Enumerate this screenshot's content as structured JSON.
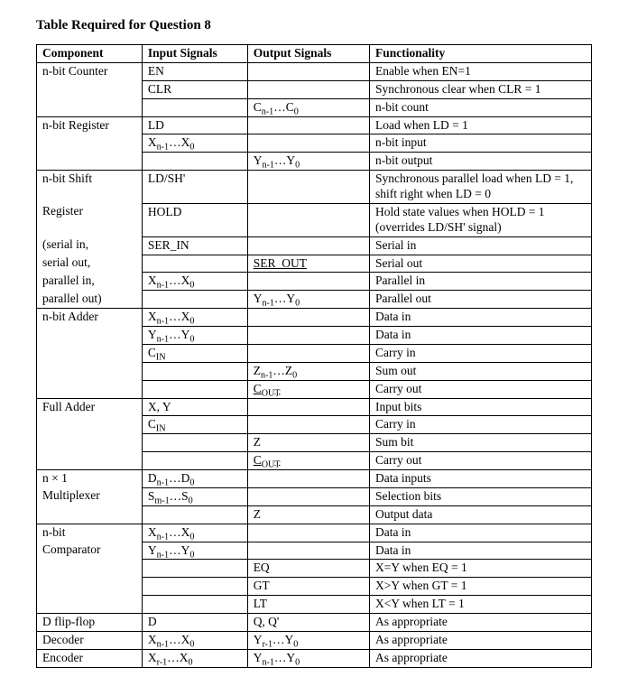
{
  "title": "Table Required for Question 8",
  "headers": [
    "Component",
    "Input Signals",
    "Output Signals",
    "Functionality"
  ],
  "colors": {
    "text": "#000000",
    "border": "#000000",
    "background": "#ffffff"
  },
  "counter": {
    "name": [
      "n-bit Counter"
    ],
    "rows": [
      {
        "in": "EN",
        "out": "",
        "fn": "Enable when EN=1"
      },
      {
        "in": "CLR",
        "out": "",
        "fn": "Synchronous clear when CLR = 1"
      },
      {
        "in": "",
        "out": "Cn-1...C0",
        "fn": "n-bit count"
      }
    ]
  },
  "register": {
    "name": [
      "n-bit Register"
    ],
    "rows": [
      {
        "in": "LD",
        "out": "",
        "fn": "Load when LD = 1"
      },
      {
        "in": "Xn-1...X0",
        "out": "",
        "fn": "n-bit input"
      },
      {
        "in": "",
        "out": "Yn-1...Y0",
        "fn": "n-bit output"
      }
    ]
  },
  "shift": {
    "name": [
      "n-bit Shift",
      "Register",
      "(serial in,",
      "serial out,",
      "parallel in,",
      "parallel out)"
    ],
    "rows": [
      {
        "in": "LD/SH'",
        "out": "",
        "fn": "Synchronous parallel load when LD = 1, shift right when LD = 0"
      },
      {
        "in": "HOLD",
        "out": "",
        "fn": "Hold state values when HOLD = 1 (overrides LD/SH' signal)"
      },
      {
        "in": "SER_IN",
        "out": "",
        "fn": "Serial in"
      },
      {
        "in": "",
        "out": "SER_OUT",
        "fn": "Serial out"
      },
      {
        "in": "Xn-1...X0",
        "out": "",
        "fn": "Parallel in"
      },
      {
        "in": "",
        "out": "Yn-1...Y0",
        "fn": "Parallel out"
      }
    ]
  },
  "adder": {
    "name": [
      "n-bit Adder"
    ],
    "rows": [
      {
        "in": "Xn-1...X0",
        "out": "",
        "fn": "Data in"
      },
      {
        "in": "Yn-1...Y0",
        "out": "",
        "fn": "Data in"
      },
      {
        "in": "CIN",
        "out": "",
        "fn": "Carry in"
      },
      {
        "in": "",
        "out": "Zn-1...Z0",
        "fn": "Sum out"
      },
      {
        "in": "",
        "out": "COUT",
        "fn": "Carry out"
      }
    ]
  },
  "fulladder": {
    "name": [
      "Full Adder"
    ],
    "rows": [
      {
        "in": "X, Y",
        "out": "",
        "fn": "Input bits"
      },
      {
        "in": "CIN",
        "out": "",
        "fn": "Carry in"
      },
      {
        "in": "",
        "out": "Z",
        "fn": "Sum bit"
      },
      {
        "in": "",
        "out": "COUT",
        "fn": "Carry out"
      }
    ]
  },
  "mux": {
    "name": [
      "n × 1",
      "Multiplexer"
    ],
    "rows": [
      {
        "in": "Dn-1...D0",
        "out": "",
        "fn": "Data inputs"
      },
      {
        "in": "Sm-1...S0",
        "out": "",
        "fn": "Selection bits"
      },
      {
        "in": "",
        "out": "Z",
        "fn": "Output data"
      }
    ]
  },
  "comparator": {
    "name": [
      "n-bit",
      "Comparator"
    ],
    "rows": [
      {
        "in": "Xn-1...X0",
        "out": "",
        "fn": "Data in"
      },
      {
        "in": "Yn-1...Y0",
        "out": "",
        "fn": "Data in"
      },
      {
        "in": "",
        "out": "EQ",
        "fn": "X=Y when EQ = 1"
      },
      {
        "in": "",
        "out": "GT",
        "fn": "X>Y when GT = 1"
      },
      {
        "in": "",
        "out": "LT",
        "fn": "X<Y when LT = 1"
      }
    ]
  },
  "dff": {
    "name": [
      "D flip-flop"
    ],
    "rows": [
      {
        "in": "D",
        "out": "Q, Q'",
        "fn": "As appropriate"
      }
    ]
  },
  "decoder": {
    "name": [
      "Decoder"
    ],
    "rows": [
      {
        "in": "Xn-1...X0",
        "out": "Yr-1...Y0",
        "fn": "As appropriate"
      }
    ]
  },
  "encoder": {
    "name": [
      "Encoder"
    ],
    "rows": [
      {
        "in": "Xr-1...X0",
        "out": "Yn-1...Y0",
        "fn": "As appropriate"
      }
    ]
  }
}
